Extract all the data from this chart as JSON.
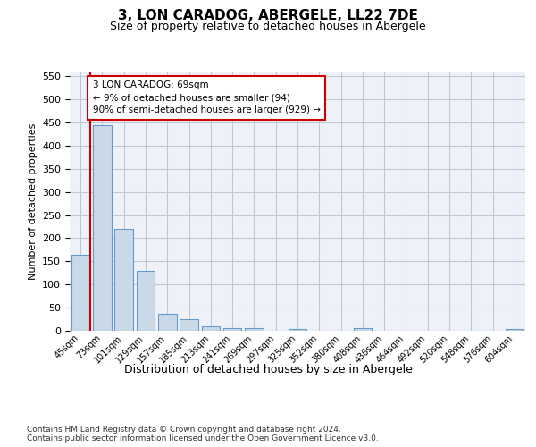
{
  "title": "3, LON CARADOG, ABERGELE, LL22 7DE",
  "subtitle": "Size of property relative to detached houses in Abergele",
  "xlabel": "Distribution of detached houses by size in Abergele",
  "ylabel": "Number of detached properties",
  "bar_labels": [
    "45sqm",
    "73sqm",
    "101sqm",
    "129sqm",
    "157sqm",
    "185sqm",
    "213sqm",
    "241sqm",
    "269sqm",
    "297sqm",
    "325sqm",
    "352sqm",
    "380sqm",
    "408sqm",
    "436sqm",
    "464sqm",
    "492sqm",
    "520sqm",
    "548sqm",
    "576sqm",
    "604sqm"
  ],
  "bar_values": [
    165,
    445,
    220,
    130,
    37,
    25,
    10,
    6,
    5,
    0,
    4,
    0,
    0,
    6,
    0,
    0,
    0,
    0,
    0,
    0,
    4
  ],
  "bar_color": "#c9d9e8",
  "bar_edge_color": "#6699cc",
  "grid_color": "#c0c8d8",
  "background_color": "#eef2f8",
  "vline_color": "#cc0000",
  "annotation_lines": [
    "3 LON CARADOG: 69sqm",
    "← 9% of detached houses are smaller (94)",
    "90% of semi-detached houses are larger (929) →"
  ],
  "annotation_box_color": "#ffffff",
  "annotation_box_edge_color": "#cc0000",
  "ylim": [
    0,
    560
  ],
  "yticks": [
    0,
    50,
    100,
    150,
    200,
    250,
    300,
    350,
    400,
    450,
    500,
    550
  ],
  "footer_line1": "Contains HM Land Registry data © Crown copyright and database right 2024.",
  "footer_line2": "Contains public sector information licensed under the Open Government Licence v3.0."
}
